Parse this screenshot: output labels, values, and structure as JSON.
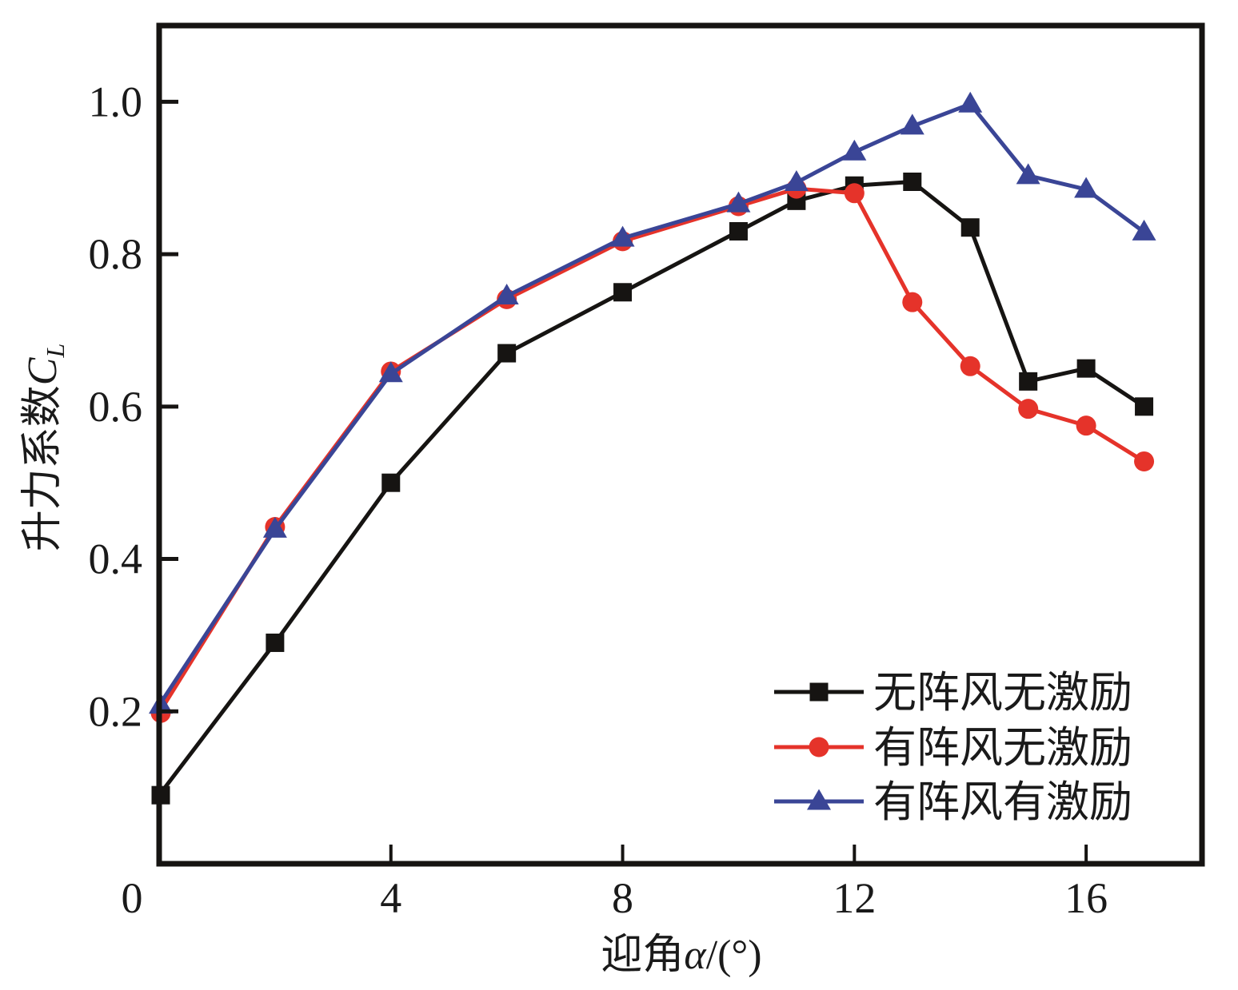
{
  "chart_data": {
    "type": "line",
    "title": "",
    "xlabel": "迎角α/(°)",
    "xlabel_parts": {
      "text": "迎角",
      "symbol": "α",
      "unit": "/(°)"
    },
    "ylabel": "升力系数C_L",
    "ylabel_parts": {
      "text": "升力系数",
      "symbol": "C",
      "subscript": "L"
    },
    "xlim": [
      0,
      18
    ],
    "ylim": [
      0.0,
      1.1
    ],
    "xticks": [
      0,
      4,
      8,
      12,
      16
    ],
    "xtick_labels": [
      "0",
      "4",
      "8",
      "12",
      "16"
    ],
    "yticks": [
      0.2,
      0.4,
      0.6,
      0.8,
      1.0
    ],
    "ytick_labels": [
      "0.2",
      "0.4",
      "0.6",
      "0.8",
      "1.0"
    ],
    "grid": false,
    "legend_position": "bottom-right",
    "x": [
      0,
      2,
      4,
      6,
      8,
      10,
      11,
      12,
      13,
      14,
      15,
      16,
      17
    ],
    "series": [
      {
        "name": "无阵风无激励",
        "color": "#161412",
        "marker": "square",
        "values": [
          0.09,
          0.29,
          0.5,
          0.67,
          0.75,
          0.83,
          0.87,
          0.89,
          0.895,
          0.835,
          0.633,
          0.65,
          0.6
        ]
      },
      {
        "name": "有阵风无激励",
        "color": "#e5332a",
        "marker": "circle",
        "values": [
          0.198,
          0.442,
          0.646,
          0.741,
          0.817,
          0.863,
          0.886,
          0.88,
          0.737,
          0.653,
          0.597,
          0.575,
          0.528
        ]
      },
      {
        "name": "有阵风有激励",
        "color": "#3a4596",
        "marker": "triangle",
        "values": [
          0.208,
          0.439,
          0.643,
          0.745,
          0.821,
          0.866,
          0.894,
          0.934,
          0.968,
          0.997,
          0.903,
          0.885,
          0.829
        ]
      }
    ]
  }
}
